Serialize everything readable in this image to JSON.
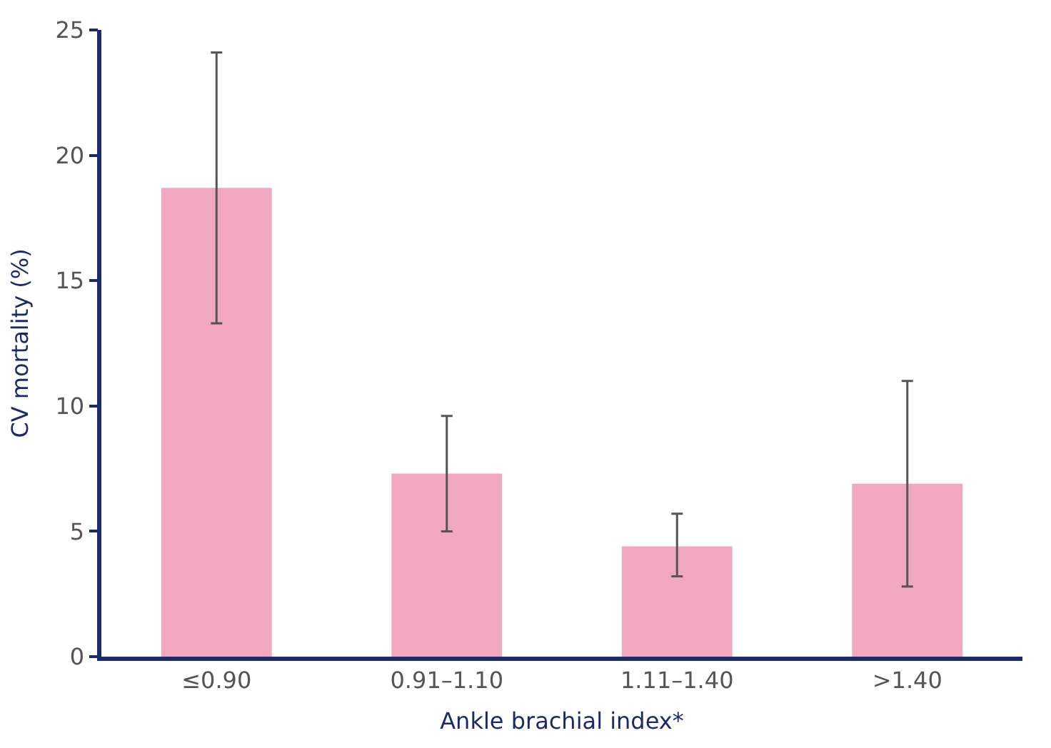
{
  "chart_data": {
    "type": "bar",
    "xlabel": "Ankle brachial index*",
    "ylabel": "CV mortality (%)",
    "categories": [
      "≤0.90",
      "0.91–1.10",
      "1.11–1.40",
      ">1.40"
    ],
    "values": [
      18.7,
      7.3,
      4.4,
      6.9
    ],
    "errors": [
      [
        13.3,
        24.1
      ],
      [
        5.0,
        9.6
      ],
      [
        3.2,
        5.7
      ],
      [
        2.8,
        11.0
      ]
    ],
    "color": "#f0a7bf",
    "ylim": [
      0,
      25
    ],
    "yticks": [
      0,
      5,
      10,
      15,
      20,
      25
    ]
  }
}
